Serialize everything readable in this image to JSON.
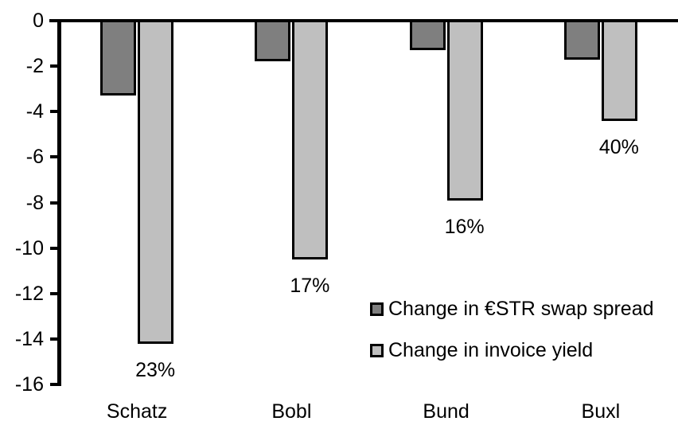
{
  "chart_data": {
    "type": "bar",
    "title": "",
    "xlabel": "",
    "ylabel": "",
    "categories": [
      "Schatz",
      "Bobl",
      "Bund",
      "Buxl"
    ],
    "series": [
      {
        "name": "Change in €STR swap spread",
        "color": "#7F7F7F",
        "values": [
          -3.3,
          -1.8,
          -1.3,
          -1.7
        ]
      },
      {
        "name": "Change in invoice yield",
        "color": "#BFBFBF",
        "values": [
          -14.2,
          -10.5,
          -7.9,
          -4.4
        ],
        "point_labels": [
          "23%",
          "17%",
          "16%",
          "40%"
        ]
      }
    ],
    "ylim": [
      -16,
      0
    ],
    "y_ticks": [
      0,
      -2,
      -4,
      -6,
      -8,
      -10,
      -12,
      -14,
      -16
    ],
    "grid": false,
    "legend_position": "inside-right",
    "bar_border_color": "#000000",
    "background_color": "#FFFFFF"
  }
}
